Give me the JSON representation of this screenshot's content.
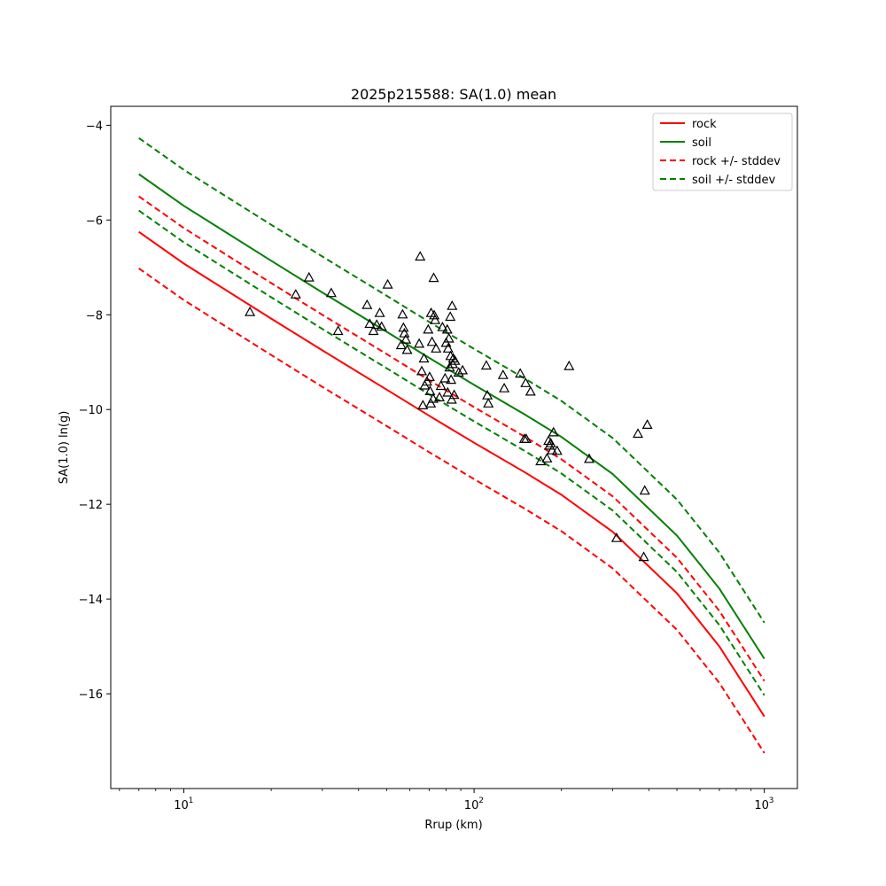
{
  "chart_data": {
    "type": "scatter",
    "title": "2025p215588: SA(1.0) mean",
    "xlabel": "Rrup (km)",
    "ylabel": "SA(1.0) ln(g)",
    "xscale": "log",
    "xlim": [
      5.6,
      1300
    ],
    "ylim": [
      -18.0,
      -3.6
    ],
    "x_ticks": [
      {
        "value": 10,
        "label": "10",
        "exp": "1"
      },
      {
        "value": 100,
        "label": "10",
        "exp": "2"
      },
      {
        "value": 1000,
        "label": "10",
        "exp": "3"
      }
    ],
    "y_ticks": [
      -4,
      -6,
      -8,
      -10,
      -12,
      -14,
      -16
    ],
    "legend": {
      "position": "top-right",
      "entries": [
        {
          "label": "rock",
          "color": "#ff0000",
          "style": "solid"
        },
        {
          "label": "soil",
          "color": "#008000",
          "style": "solid"
        },
        {
          "label": "rock +/- stddev",
          "color": "#ff0000",
          "style": "dashed"
        },
        {
          "label": "soil +/- stddev",
          "color": "#008000",
          "style": "dashed"
        }
      ]
    },
    "lines": [
      {
        "key": "rock",
        "color": "#ff0000",
        "style": "solid",
        "x": [
          7,
          10,
          20,
          30,
          50,
          70,
          100,
          150,
          200,
          300,
          500,
          700,
          1000
        ],
        "y": [
          -6.25,
          -6.92,
          -8.08,
          -8.75,
          -9.58,
          -10.13,
          -10.7,
          -11.33,
          -11.8,
          -12.58,
          -13.88,
          -15.0,
          -16.48
        ]
      },
      {
        "key": "soil",
        "color": "#008000",
        "style": "solid",
        "x": [
          7,
          10,
          20,
          30,
          50,
          70,
          100,
          150,
          200,
          300,
          500,
          700,
          1000
        ],
        "y": [
          -5.03,
          -5.7,
          -6.86,
          -7.53,
          -8.36,
          -8.91,
          -9.48,
          -10.11,
          -10.58,
          -11.36,
          -12.66,
          -13.78,
          -15.26
        ]
      },
      {
        "key": "rock_plus",
        "color": "#ff0000",
        "style": "dashed",
        "x": [
          7,
          10,
          20,
          30,
          50,
          70,
          100,
          150,
          200,
          300,
          500,
          700,
          1000
        ],
        "y": [
          -5.5,
          -6.17,
          -7.33,
          -8.0,
          -8.83,
          -9.38,
          -9.95,
          -10.58,
          -11.05,
          -11.83,
          -13.13,
          -14.25,
          -15.73
        ]
      },
      {
        "key": "rock_minus",
        "color": "#ff0000",
        "style": "dashed",
        "x": [
          7,
          10,
          20,
          30,
          50,
          70,
          100,
          150,
          200,
          300,
          500,
          700,
          1000
        ],
        "y": [
          -7.02,
          -7.69,
          -8.85,
          -9.52,
          -10.35,
          -10.9,
          -11.47,
          -12.1,
          -12.57,
          -13.35,
          -14.65,
          -15.77,
          -17.25
        ]
      },
      {
        "key": "soil_plus",
        "color": "#008000",
        "style": "dashed",
        "x": [
          7,
          10,
          20,
          30,
          50,
          70,
          100,
          150,
          200,
          300,
          500,
          700,
          1000
        ],
        "y": [
          -4.27,
          -4.94,
          -6.1,
          -6.77,
          -7.6,
          -8.15,
          -8.72,
          -9.35,
          -9.82,
          -10.6,
          -11.9,
          -13.02,
          -14.5
        ]
      },
      {
        "key": "soil_minus",
        "color": "#008000",
        "style": "dashed",
        "x": [
          7,
          10,
          20,
          30,
          50,
          70,
          100,
          150,
          200,
          300,
          500,
          700,
          1000
        ],
        "y": [
          -5.8,
          -6.47,
          -7.63,
          -8.3,
          -9.13,
          -9.68,
          -10.25,
          -10.88,
          -11.35,
          -12.13,
          -13.43,
          -14.55,
          -16.03
        ]
      }
    ],
    "observations": {
      "marker": "triangle",
      "x": [
        16.9,
        24.3,
        27.0,
        32.2,
        34.0,
        42.8,
        43.7,
        45.0,
        46.2,
        47.3,
        48.0,
        50.4,
        56.1,
        56.7,
        57.1,
        57.5,
        58.2,
        58.8,
        64.7,
        65.2,
        66.0,
        66.6,
        67.2,
        67.6,
        68.8,
        69.5,
        70.3,
        70.5,
        70.9,
        71.1,
        71.6,
        72.3,
        72.6,
        72.9,
        73.4,
        74.0,
        76.0,
        76.9,
        77.8,
        79.4,
        80.1,
        80.8,
        81.1,
        81.4,
        81.9,
        82.4,
        82.8,
        83.0,
        83.3,
        83.7,
        84.0,
        84.4,
        84.8,
        85.4,
        86.0,
        88.5,
        91.3,
        110.2,
        111.1,
        112.0,
        125.9,
        127.0,
        144.2,
        149.0,
        150.6,
        151.2,
        156.5,
        169.5,
        178.4,
        180.5,
        181.9,
        183.7,
        185.6,
        187.7,
        193.2,
        212.4,
        249.2,
        309.7,
        366.8,
        384.2,
        387.3,
        395.2
      ],
      "y": [
        -7.95,
        -7.58,
        -7.22,
        -7.55,
        -8.35,
        -7.8,
        -8.2,
        -8.35,
        -8.22,
        -7.97,
        -8.26,
        -7.37,
        -8.65,
        -8.0,
        -8.28,
        -8.4,
        -8.53,
        -8.75,
        -8.62,
        -6.78,
        -9.2,
        -9.92,
        -8.93,
        -9.5,
        -9.42,
        -8.32,
        -9.32,
        -9.62,
        -9.88,
        -7.97,
        -8.58,
        -9.78,
        -7.23,
        -8.02,
        -8.12,
        -8.72,
        -9.75,
        -9.51,
        -8.27,
        -9.35,
        -8.6,
        -8.32,
        -9.65,
        -8.72,
        -8.51,
        -9.12,
        -8.05,
        -8.88,
        -9.38,
        -9.8,
        -7.82,
        -9.05,
        -8.93,
        -9.7,
        -8.98,
        -9.23,
        -9.18,
        -9.08,
        -9.71,
        -9.88,
        -9.28,
        -9.56,
        -9.25,
        -10.63,
        -9.45,
        -10.63,
        -9.63,
        -11.1,
        -11.04,
        -10.67,
        -10.77,
        -10.72,
        -10.87,
        -10.49,
        -10.88,
        -9.09,
        -11.05,
        -12.72,
        -10.52,
        -13.12,
        -11.72,
        -10.33
      ]
    }
  }
}
